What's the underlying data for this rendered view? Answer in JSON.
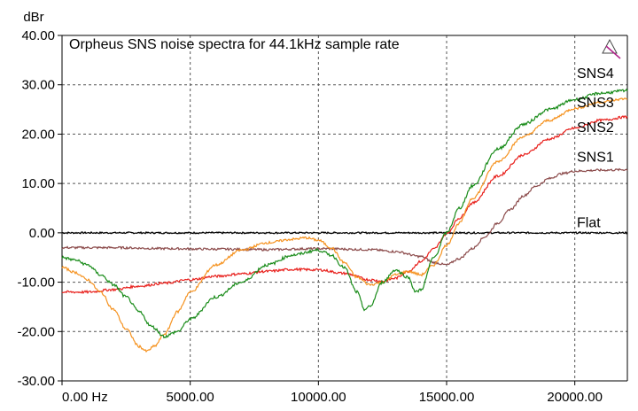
{
  "chart_data": {
    "type": "line",
    "title": "Orpheus SNS noise spectra for 44.1kHz sample rate",
    "ylabel": "dBr",
    "xlim": [
      0,
      22050
    ],
    "ylim": [
      -30,
      40
    ],
    "grid": true,
    "x_ticks": [
      0,
      5000,
      10000,
      15000,
      20000
    ],
    "x_tick_labels": [
      "0.00 Hz",
      "5000.00",
      "10000.00",
      "15000.00",
      "20000.00"
    ],
    "y_ticks": [
      40,
      30,
      20,
      10,
      0,
      -10,
      -20,
      -30
    ],
    "y_tick_labels": [
      "40.00",
      "30.00",
      "20.00",
      "10.00",
      "0.00",
      "-10.00",
      "-20.00",
      "-30.00"
    ],
    "series": [
      {
        "name": "Flat",
        "color": "#000000",
        "x": [
          0,
          22050
        ],
        "y": [
          0,
          0
        ]
      },
      {
        "name": "SNS1",
        "color": "#8b4a4a",
        "x": [
          0,
          2000,
          4000,
          6000,
          8000,
          10000,
          12000,
          13000,
          14000,
          14500,
          15000,
          15500,
          16000,
          16500,
          17000,
          17500,
          18000,
          18500,
          19000,
          19500,
          20000,
          21000,
          22050
        ],
        "y": [
          -3,
          -3,
          -3.2,
          -3.3,
          -3.4,
          -3.2,
          -3.4,
          -3.8,
          -4.8,
          -6,
          -6.5,
          -5.2,
          -3.2,
          -0.8,
          2,
          4.8,
          7.5,
          9.5,
          11,
          12,
          12.5,
          12.7,
          12.8
        ]
      },
      {
        "name": "SNS2",
        "color": "#e8201c",
        "x": [
          0,
          1000,
          2000,
          3000,
          4000,
          5000,
          6000,
          7000,
          8000,
          9000,
          10000,
          11000,
          12000,
          12500,
          13000,
          13500,
          14000,
          14500,
          15000,
          15500,
          16000,
          17000,
          18000,
          19000,
          20000,
          21000,
          22050
        ],
        "y": [
          -12,
          -12,
          -11.5,
          -10.8,
          -10.2,
          -9.5,
          -8.8,
          -8.3,
          -7.8,
          -7.4,
          -7.5,
          -8.2,
          -9.5,
          -9.8,
          -9.2,
          -7.8,
          -5.8,
          -3.3,
          -0.2,
          3,
          6,
          11.5,
          15.8,
          19,
          21.2,
          22.8,
          23.5
        ]
      },
      {
        "name": "SNS3",
        "color": "#f5921f",
        "x": [
          0,
          500,
          1000,
          1500,
          2000,
          2500,
          3000,
          3300,
          3600,
          4000,
          4500,
          5000,
          6000,
          7000,
          8000,
          9000,
          9500,
          10000,
          10500,
          11000,
          11500,
          12000,
          12500,
          13000,
          13500,
          14000,
          14500,
          15000,
          15500,
          16000,
          17000,
          18000,
          19000,
          20000,
          21000,
          22050
        ],
        "y": [
          -7,
          -8,
          -9.5,
          -12,
          -15.5,
          -19.5,
          -23,
          -24,
          -23,
          -20.5,
          -16,
          -12,
          -6.5,
          -3.5,
          -2,
          -1.3,
          -1,
          -1.5,
          -3,
          -6,
          -9,
          -10.5,
          -10,
          -8.5,
          -7.8,
          -8.5,
          -6.5,
          -2.5,
          2,
          7,
          14.5,
          19.5,
          22.8,
          25.2,
          26.5,
          27.2
        ]
      },
      {
        "name": "SNS4",
        "color": "#1a8c1a",
        "x": [
          0,
          500,
          1000,
          1500,
          2000,
          2500,
          3000,
          3500,
          4000,
          4500,
          5000,
          6000,
          7000,
          8000,
          9000,
          10000,
          10500,
          11000,
          11500,
          11800,
          12000,
          12500,
          13000,
          13500,
          13800,
          14000,
          14500,
          15000,
          15500,
          16000,
          17000,
          18000,
          19000,
          20000,
          21000,
          22050
        ],
        "y": [
          -5,
          -5.5,
          -6.5,
          -8.5,
          -10.5,
          -13,
          -16,
          -19,
          -21,
          -20,
          -17.5,
          -13,
          -10,
          -6.5,
          -4.5,
          -3.5,
          -4.5,
          -7,
          -12,
          -15.5,
          -15,
          -10,
          -7.5,
          -9,
          -12,
          -11.5,
          -5,
          0,
          5,
          9.5,
          17,
          22,
          25,
          27,
          28.3,
          28.8
        ]
      }
    ]
  }
}
